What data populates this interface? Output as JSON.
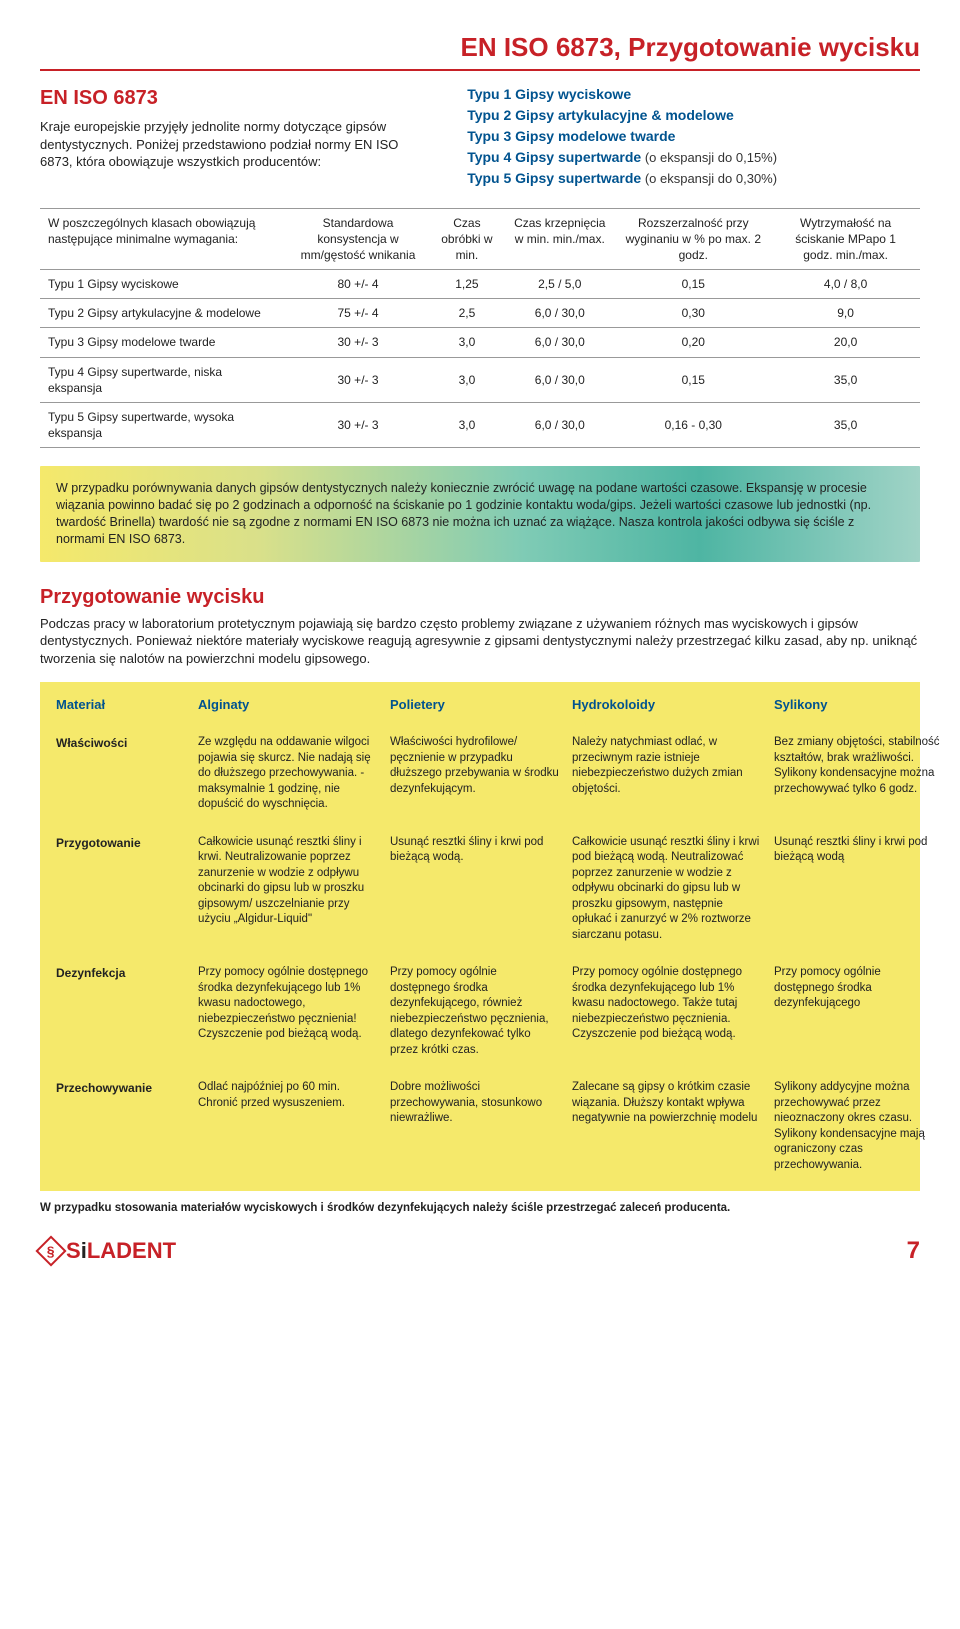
{
  "top_title": "EN ISO 6873, Przygotowanie wycisku",
  "intro": {
    "title": "EN ISO 6873",
    "text": "Kraje europejskie przyjęły jednolite normy dotyczące gipsów dentystycznych.\nPoniżej przedstawiono podział normy EN ISO 6873, która obowiązuje wszystkich producentów:"
  },
  "types": [
    {
      "label": "Typu 1 Gipsy wyciskowe",
      "note": ""
    },
    {
      "label": "Typu 2 Gipsy artykulacyjne & modelowe",
      "note": ""
    },
    {
      "label": "Typu 3 Gipsy modelowe twarde",
      "note": ""
    },
    {
      "label": "Typu 4 Gipsy supertwarde",
      "note": " (o ekspansji do 0,15%)"
    },
    {
      "label": "Typu 5 Gipsy supertwarde",
      "note": " (o ekspansji do 0,30%)"
    }
  ],
  "spec_table": {
    "headers": [
      "W poszczególnych klasach obowiązują następujące minimalne wymagania:",
      "Standardowa konsystencja w mm/gęstość wnikania",
      "Czas obróbki w min.",
      "Czas krzepnięcia w min. min./max.",
      "Rozszerzalność przy wyginaniu w % po max. 2 godz.",
      "Wytrzymałość na ściskanie MPapo 1 godz. min./max."
    ],
    "rows": [
      [
        "Typu 1 Gipsy wyciskowe",
        "80 +/- 4",
        "1,25",
        "2,5 / 5,0",
        "0,15",
        "4,0 / 8,0"
      ],
      [
        "Typu 2 Gipsy artykulacyjne & modelowe",
        "75 +/- 4",
        "2,5",
        "6,0 / 30,0",
        "0,30",
        "9,0"
      ],
      [
        "Typu 3 Gipsy modelowe twarde",
        "30 +/- 3",
        "3,0",
        "6,0 / 30,0",
        "0,20",
        "20,0"
      ],
      [
        "Typu 4 Gipsy supertwarde, niska ekspansja",
        "30 +/- 3",
        "3,0",
        "6,0 / 30,0",
        "0,15",
        "35,0"
      ],
      [
        "Typu 5 Gipsy supertwarde, wysoka ekspansja",
        "30 +/- 3",
        "3,0",
        "6,0 / 30,0",
        "0,16 - 0,30",
        "35,0"
      ]
    ]
  },
  "gradient_text": "W przypadku porównywania danych gipsów dentystycznych należy koniecznie zwrócić uwagę na podane wartości czasowe. Ekspansję w procesie wiązania powinno badać się po 2 godzinach a odporność na ściskanie po 1 godzinie kontaktu woda/gips. Jeżeli wartości czasowe lub jednostki (np. twardość Brinella) twardość nie są zgodne z normami EN ISO 6873 nie można ich uznać za wiążące. Nasza kontrola jakości odbywa się ściśle z normami EN ISO 6873.",
  "prep": {
    "title": "Przygotowanie wycisku",
    "text": "Podczas pracy w laboratorium protetycznym pojawiają się bardzo często problemy związane z używaniem różnych mas wyciskowych i gipsów dentystycznych. Ponieważ niektóre materiały wyciskowe reagują agresywnie z gipsami dentystycznymi należy przestrzegać kilku zasad, aby np. uniknąć tworzenia się nalotów na powierzchni modelu gipsowego."
  },
  "materials": {
    "col_headers": [
      "Materiał",
      "Alginaty",
      "Polietery",
      "Hydrokoloidy",
      "Sylikony"
    ],
    "row_labels": [
      "Właściwości",
      "Przygotowanie",
      "Dezynfekcja",
      "Przechowywanie"
    ],
    "cells": {
      "r0": [
        "Ze względu na oddawanie wilgoci pojawia się skurcz. Nie nadają się do dłuższego przechowywania. - maksymalnie 1 godzinę, nie dopuścić do wyschnięcia.",
        "Właściwości hydrofilowe/ pęcznienie w przypadku dłuższego przebywania w środku dezynfekującym.",
        "Należy natychmiast odlać, w przeciwnym razie istnieje niebezpieczeństwo dużych zmian objętości.",
        "Bez zmiany objętości, stabilność kształtów, brak wrażliwości. Sylikony kondensacyjne można przechowywać tylko 6 godz."
      ],
      "r1": [
        "Całkowicie usunąć resztki śliny i krwi. Neutralizowanie poprzez zanurzenie w wodzie z odpływu obcinarki do gipsu lub w proszku gipsowym/ uszczelnianie przy użyciu „Algidur-Liquid\"",
        "Usunąć resztki śliny i krwi pod bieżącą wodą.",
        "Całkowicie usunąć resztki śliny i krwi pod bieżącą wodą. Neutralizować poprzez zanurzenie w wodzie z odpływu obcinarki do gipsu lub w proszku gipsowym, następnie opłukać i zanurzyć w 2% roztworze siarczanu potasu.",
        "Usunąć resztki śliny i krwi pod bieżącą wodą"
      ],
      "r2": [
        "Przy pomocy ogólnie dostępnego środka dezynfekującego lub 1% kwasu nadoctowego, niebezpieczeństwo pęcznienia! Czyszczenie pod bieżącą wodą.",
        "Przy pomocy ogólnie dostępnego środka dezynfekującego, również niebezpieczeństwo pęcznienia, dlatego dezynfekować tylko przez krótki czas.",
        "Przy pomocy ogólnie dostępnego środka dezynfekującego lub 1% kwasu nadoctowego. Także tutaj niebezpieczeństwo pęcznienia. Czyszczenie pod bieżącą wodą.",
        "Przy pomocy ogólnie dostępnego środka dezynfekującego"
      ],
      "r3": [
        "Odlać najpóźniej po 60 min. Chronić przed wysuszeniem.",
        "Dobre możliwości przechowywania, stosunkowo niewrażliwe.",
        "Zalecane są gipsy o krótkim czasie wiązania. Dłuższy kontakt wpływa negatywnie na powierzchnię modelu",
        "Sylikony addycyjne można przechowywać przez nieoznaczony okres czasu. Sylikony kondensacyjne mają ograniczony czas przechowywania."
      ]
    }
  },
  "footer_note": "W przypadku stosowania materiałów wyciskowych i środków dezynfekujących należy ściśle przestrzegać zaleceń producenta.",
  "logo": {
    "s": "S",
    "i": "i",
    "rest": "LADENT"
  },
  "page_num": "7"
}
